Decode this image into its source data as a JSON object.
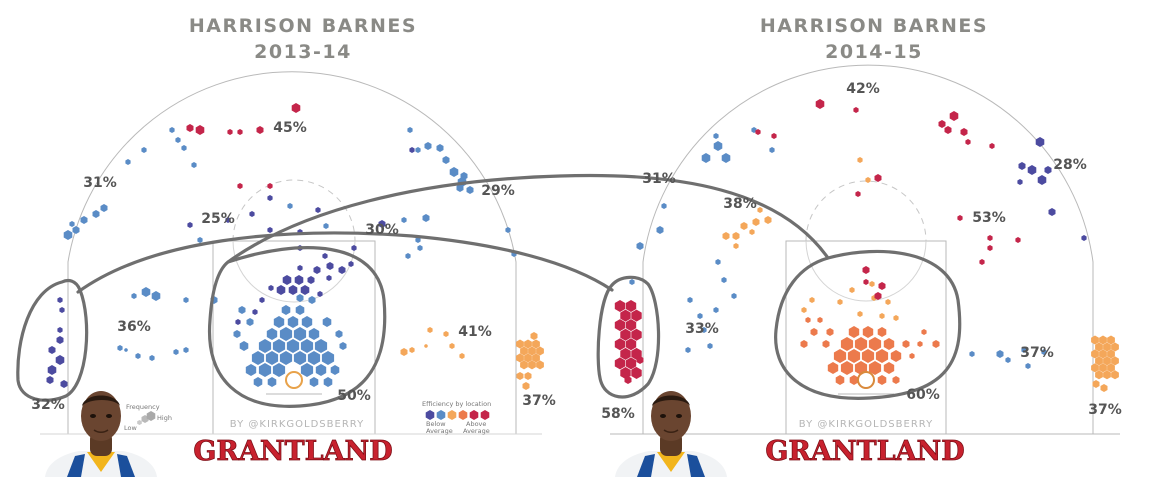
{
  "chart_data": [
    {
      "type": "hexbin shot chart",
      "title": "HARRISON BARNES",
      "subtitle": "2013-14",
      "zones": [
        {
          "zone": "left corner three",
          "fg_pct": "32%"
        },
        {
          "zone": "left wing three",
          "fg_pct": "31%"
        },
        {
          "zone": "top of key three",
          "fg_pct": "45%"
        },
        {
          "zone": "right wing three",
          "fg_pct": "29%"
        },
        {
          "zone": "right corner three",
          "fg_pct": "37%"
        },
        {
          "zone": "left elbow midrange",
          "fg_pct": "25%"
        },
        {
          "zone": "center midrange",
          "fg_pct": "30%"
        },
        {
          "zone": "left baseline midrange",
          "fg_pct": "36%"
        },
        {
          "zone": "right baseline midrange",
          "fg_pct": "41%"
        },
        {
          "zone": "paint / restricted area",
          "fg_pct": "50%"
        }
      ]
    },
    {
      "type": "hexbin shot chart",
      "title": "HARRISON BARNES",
      "subtitle": "2014-15",
      "zones": [
        {
          "zone": "left corner three",
          "fg_pct": "58%"
        },
        {
          "zone": "left wing three",
          "fg_pct": "31%"
        },
        {
          "zone": "top of key three",
          "fg_pct": "42%"
        },
        {
          "zone": "right wing three",
          "fg_pct": "28%"
        },
        {
          "zone": "right corner three",
          "fg_pct": "37%"
        },
        {
          "zone": "left elbow midrange",
          "fg_pct": "38%"
        },
        {
          "zone": "right elbow midrange",
          "fg_pct": "53%"
        },
        {
          "zone": "left baseline midrange",
          "fg_pct": "33%"
        },
        {
          "zone": "right baseline midrange",
          "fg_pct": "37%"
        },
        {
          "zone": "paint / restricted area",
          "fg_pct": "60%"
        }
      ]
    }
  ],
  "credit": "BY @KIRKGOLDSBERRY",
  "brand": "GRANTLAND",
  "legend": {
    "frequency_title": "Frequency",
    "low": "Low",
    "high": "High",
    "efficiency_title": "Efficiency by location",
    "below": [
      "Below",
      "Average"
    ],
    "above": [
      "Above",
      "Average"
    ]
  },
  "colors": {
    "below_dark": "#4c4ba0",
    "below_light": "#5a8cc6",
    "above_light": "#f4a75a",
    "above_mid": "#ec7a4c",
    "above_dark": "#c4254a",
    "brand_red": "#c8212e",
    "annotation": "#6f6f6f"
  },
  "icons": [
    "player-photo"
  ]
}
